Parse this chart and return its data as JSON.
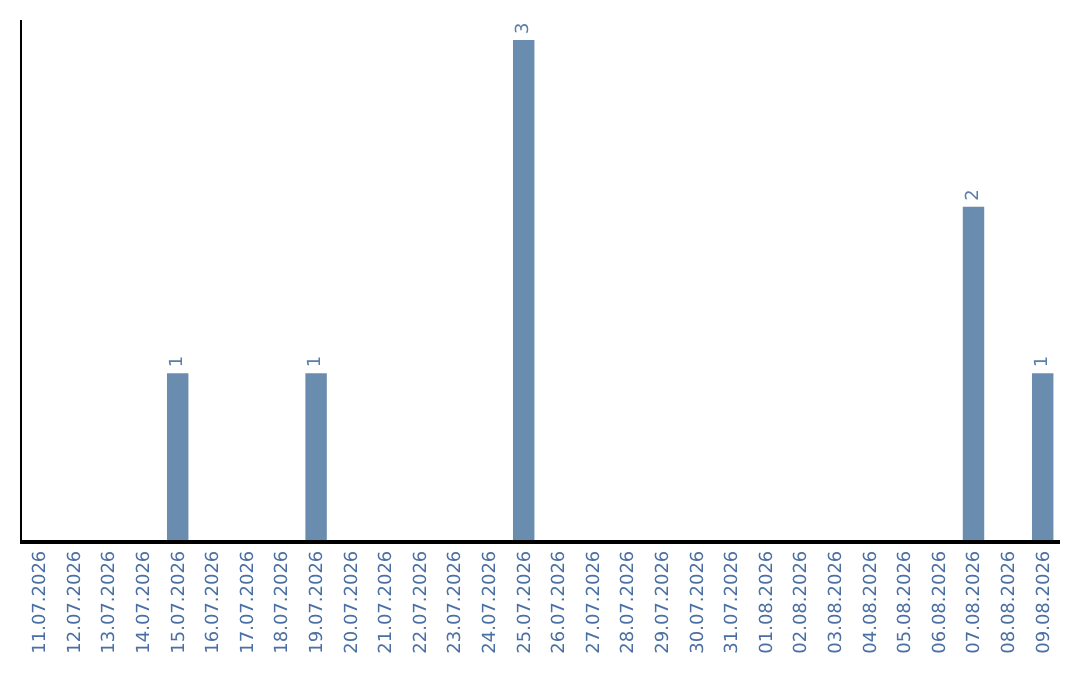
{
  "chart_data": {
    "type": "bar",
    "categories": [
      "11.07.2026",
      "12.07.2026",
      "13.07.2026",
      "14.07.2026",
      "15.07.2026",
      "16.07.2026",
      "17.07.2026",
      "18.07.2026",
      "19.07.2026",
      "20.07.2026",
      "21.07.2026",
      "22.07.2026",
      "23.07.2026",
      "24.07.2026",
      "25.07.2026",
      "26.07.2026",
      "27.07.2026",
      "28.07.2026",
      "29.07.2026",
      "30.07.2026",
      "31.07.2026",
      "01.08.2026",
      "02.08.2026",
      "03.08.2026",
      "04.08.2026",
      "05.08.2026",
      "06.08.2026",
      "07.08.2026",
      "08.08.2026",
      "09.08.2026"
    ],
    "values": [
      0,
      0,
      0,
      0,
      1,
      0,
      0,
      0,
      1,
      0,
      0,
      0,
      0,
      0,
      3,
      0,
      0,
      0,
      0,
      0,
      0,
      0,
      0,
      0,
      0,
      0,
      0,
      2,
      0,
      1
    ],
    "value_labels": [
      null,
      null,
      null,
      null,
      "1",
      null,
      null,
      null,
      "1",
      null,
      null,
      null,
      null,
      null,
      "3",
      null,
      null,
      null,
      null,
      null,
      null,
      null,
      null,
      null,
      null,
      null,
      null,
      "2",
      null,
      "1"
    ],
    "color": "#6a8caf",
    "legend": false
  }
}
